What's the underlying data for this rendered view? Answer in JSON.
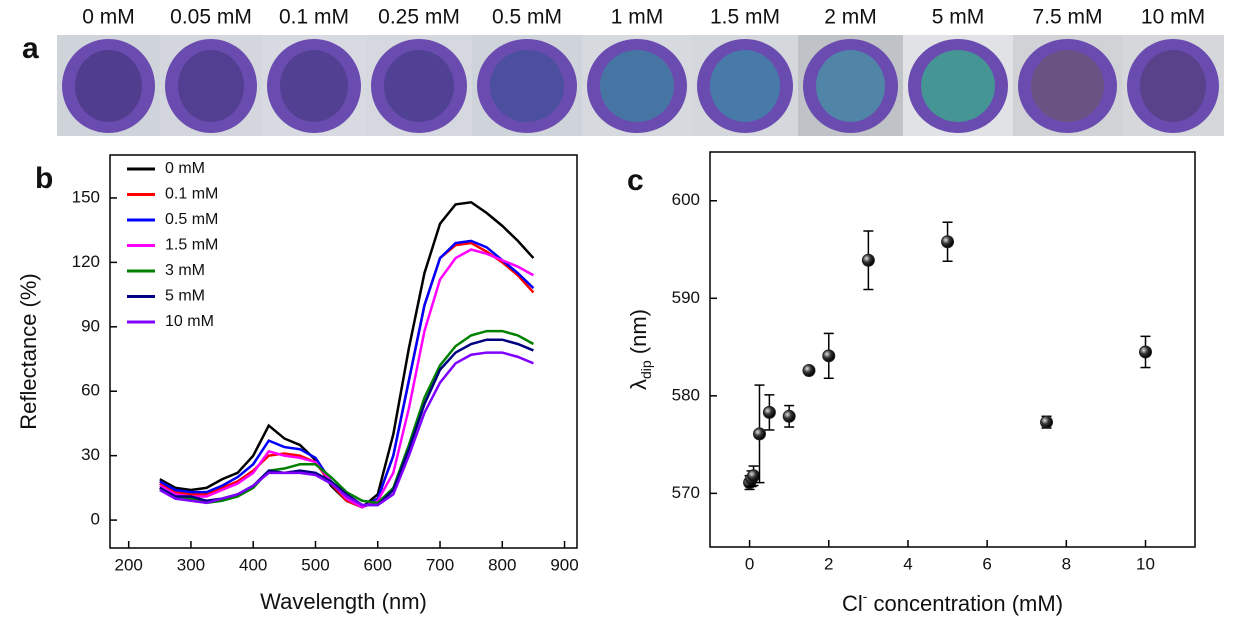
{
  "photos": {
    "panel_label": "a",
    "labels": [
      "0 mM",
      "0.05 mM",
      "0.1 mM",
      "0.25 mM",
      "0.5 mM",
      "1 mM",
      "1.5 mM",
      "2 mM",
      "5 mM",
      "7.5 mM",
      "10 mM"
    ]
  },
  "chart_data": [
    {
      "type": "line",
      "panel_label": "b",
      "xlabel": "Wavelength (nm)",
      "ylabel": "Reflectance (%)",
      "x": [
        250,
        275,
        300,
        325,
        350,
        375,
        400,
        425,
        450,
        475,
        500,
        525,
        550,
        575,
        600,
        625,
        650,
        675,
        700,
        725,
        750,
        775,
        800,
        825,
        850
      ],
      "series": [
        {
          "name": "0 mM",
          "color": "#000000",
          "values": [
            19,
            15,
            14,
            15,
            19,
            22,
            30,
            44,
            38,
            35,
            28,
            16,
            9,
            6,
            12,
            40,
            80,
            115,
            138,
            147,
            148,
            143,
            137,
            130,
            122
          ]
        },
        {
          "name": "0.1 mM",
          "color": "#ff0000",
          "values": [
            17,
            13,
            12,
            12,
            15,
            18,
            23,
            30,
            31,
            30,
            27,
            17,
            9,
            6,
            10,
            30,
            65,
            100,
            122,
            128,
            129,
            125,
            120,
            114,
            106
          ]
        },
        {
          "name": "0.5 mM",
          "color": "#0000ff",
          "values": [
            18,
            14,
            13,
            13,
            16,
            20,
            26,
            37,
            34,
            33,
            29,
            18,
            10,
            6,
            10,
            30,
            65,
            100,
            122,
            129,
            130,
            127,
            121,
            115,
            108
          ]
        },
        {
          "name": "1.5 mM",
          "color": "#ff00ff",
          "values": [
            16,
            12,
            11,
            11,
            14,
            17,
            22,
            32,
            30,
            29,
            27,
            18,
            10,
            6,
            9,
            22,
            52,
            88,
            112,
            122,
            126,
            124,
            121,
            118,
            114
          ]
        },
        {
          "name": "3 mM",
          "color": "#008000",
          "values": [
            15,
            10,
            10,
            8,
            9,
            11,
            15,
            23,
            24,
            26,
            26,
            20,
            13,
            9,
            8,
            15,
            35,
            57,
            72,
            81,
            86,
            88,
            88,
            86,
            82
          ]
        },
        {
          "name": "5 mM",
          "color": "#000080",
          "values": [
            15,
            11,
            11,
            9,
            10,
            12,
            16,
            23,
            22,
            23,
            22,
            18,
            12,
            7,
            7,
            14,
            33,
            54,
            70,
            78,
            82,
            84,
            84,
            82,
            79
          ]
        },
        {
          "name": "10 mM",
          "color": "#8000ff",
          "values": [
            14,
            10,
            9,
            8,
            10,
            12,
            16,
            22,
            22,
            22,
            21,
            17,
            11,
            7,
            7,
            12,
            30,
            50,
            64,
            73,
            77,
            78,
            78,
            76,
            73
          ]
        }
      ],
      "xlim": [
        170,
        920
      ],
      "xticks": [
        200,
        300,
        400,
        500,
        600,
        700,
        800,
        900
      ],
      "ylim": [
        -13,
        170
      ],
      "yticks": [
        0,
        30,
        60,
        90,
        120,
        150
      ],
      "legend": "upper left"
    },
    {
      "type": "scatter",
      "panel_label": "c",
      "xlabel_parts": [
        "Cl",
        "-",
        " concentration (mM)"
      ],
      "ylabel_parts": [
        "λ",
        "dip",
        " (nm)"
      ],
      "x": [
        0,
        0.05,
        0.1,
        0.25,
        0.5,
        1,
        1.5,
        2,
        3,
        5,
        7.5,
        10
      ],
      "values": [
        571.1,
        571.5,
        571.8,
        576.1,
        578.3,
        577.9,
        582.6,
        584.1,
        593.9,
        595.8,
        577.3,
        584.5
      ],
      "errors": [
        0.7,
        0.8,
        1,
        5,
        1.8,
        1.1,
        0.3,
        2.3,
        3,
        2,
        0.6,
        1.6
      ],
      "color": "#222222",
      "xlim": [
        -1,
        11.25
      ],
      "xticks": [
        0,
        2,
        4,
        6,
        8,
        10
      ],
      "ylim": [
        564.5,
        605
      ],
      "yticks": [
        570,
        580,
        590,
        600
      ]
    }
  ]
}
